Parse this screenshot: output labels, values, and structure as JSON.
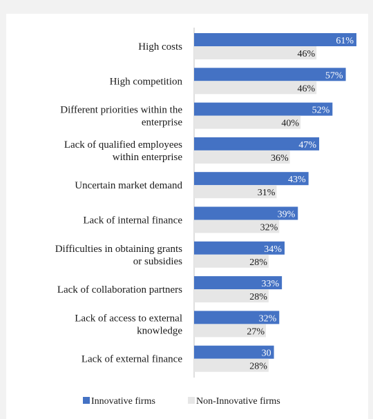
{
  "chart_data": {
    "type": "bar",
    "orientation": "horizontal",
    "title": "",
    "categories": [
      [
        "High costs"
      ],
      [
        "High competition"
      ],
      [
        "Different priorities within the",
        "enterprise"
      ],
      [
        "Lack of qualified employees",
        "within enterprise"
      ],
      [
        "Uncertain market demand"
      ],
      [
        "Lack of internal finance"
      ],
      [
        "Difficulties in obtaining grants",
        "or subsidies"
      ],
      [
        "Lack of collaboration partners"
      ],
      [
        "Lack of access to external",
        "knowledge"
      ],
      [
        "Lack of external finance"
      ]
    ],
    "series": [
      {
        "name": "Innovative firms",
        "color": "#4472c4",
        "values": [
          61,
          57,
          52,
          47,
          43,
          39,
          34,
          33,
          32,
          30
        ],
        "labels": [
          "61%",
          "57%",
          "52%",
          "47%",
          "43%",
          "39%",
          "34%",
          "33%",
          "32%",
          "30"
        ]
      },
      {
        "name": "Non-Innovative firms",
        "color": "#e6e6e6",
        "values": [
          46,
          46,
          40,
          36,
          31,
          32,
          28,
          28,
          27,
          28
        ],
        "labels": [
          "46%",
          "46%",
          "40%",
          "36%",
          "31%",
          "32%",
          "28%",
          "28%",
          "27%",
          "28%"
        ]
      }
    ],
    "xlim": [
      0,
      65
    ],
    "grid": false,
    "legend_position": "bottom"
  }
}
